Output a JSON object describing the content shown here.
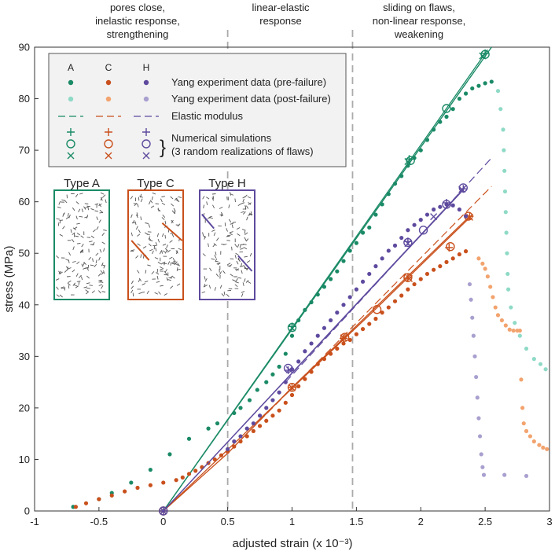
{
  "chart_data": {
    "type": "scatter",
    "xlabel": "adjusted strain (x 10⁻³)",
    "ylabel": "stress (MPa)",
    "xlim": [
      -1,
      3
    ],
    "ylim": [
      0,
      90
    ],
    "xticks": [
      -1,
      -0.5,
      0,
      0.5,
      1,
      1.5,
      2,
      2.5,
      3
    ],
    "xtick_labels": [
      "-1",
      "-0.5",
      "0",
      "0.5",
      "1",
      "1.5",
      "2",
      "2.5",
      "3"
    ],
    "yticks": [
      0,
      10,
      20,
      30,
      40,
      50,
      60,
      70,
      80,
      90
    ],
    "ytick_labels": [
      "0",
      "10",
      "20",
      "30",
      "40",
      "50",
      "60",
      "70",
      "80",
      "90"
    ],
    "regions": [
      {
        "x": 0.5,
        "label_lines": [
          "pores close,",
          "inelastic response,",
          "strengthening"
        ]
      },
      {
        "x": 1.47,
        "label_lines": [
          "linear-elastic",
          "response"
        ]
      },
      {
        "label_lines": [
          "sliding on flaws,",
          "non-linear response,",
          "weakening"
        ]
      }
    ],
    "colors": {
      "A": "#1a8a66",
      "A_post": "#8fdac6",
      "C": "#c9501c",
      "C_post": "#f2a36e",
      "H": "#5e4a9e",
      "H_post": "#a9a0cf",
      "guide": "#aaaaaa"
    },
    "legend": {
      "headers": [
        "A",
        "C",
        "H"
      ],
      "pre_failure": "Yang experiment data (pre-failure)",
      "post_failure": "Yang experiment data (post-failure)",
      "elastic": "Elastic modulus",
      "sim_line1": "Numerical simulations",
      "sim_line2": "(3 random realizations of flaws)"
    },
    "insets": [
      {
        "label": "Type A",
        "series": "A"
      },
      {
        "label": "Type C",
        "series": "C"
      },
      {
        "label": "Type H",
        "series": "H"
      }
    ],
    "series": [
      {
        "name": "A",
        "pre_failure": [
          [
            -0.7,
            0.8
          ],
          [
            -0.5,
            2.3
          ],
          [
            -0.4,
            3.5
          ],
          [
            -0.25,
            5.5
          ],
          [
            -0.1,
            8
          ],
          [
            0.05,
            11
          ],
          [
            0.2,
            14
          ],
          [
            0.35,
            16
          ],
          [
            0.42,
            17
          ],
          [
            0.55,
            19
          ],
          [
            0.6,
            20
          ],
          [
            0.67,
            21.5
          ],
          [
            0.73,
            23.5
          ],
          [
            0.8,
            25
          ],
          [
            0.85,
            26.5
          ],
          [
            0.9,
            28
          ],
          [
            0.95,
            30.5
          ],
          [
            1,
            34
          ],
          [
            1.05,
            37
          ],
          [
            1.1,
            39
          ],
          [
            1.15,
            40.5
          ],
          [
            1.2,
            42
          ],
          [
            1.25,
            43.5
          ],
          [
            1.3,
            45
          ],
          [
            1.35,
            46.5
          ],
          [
            1.4,
            48.5
          ],
          [
            1.45,
            50.5
          ],
          [
            1.5,
            52
          ],
          [
            1.55,
            54
          ],
          [
            1.6,
            55
          ],
          [
            1.65,
            57.5
          ],
          [
            1.7,
            59.5
          ],
          [
            1.75,
            61.5
          ],
          [
            1.8,
            63.5
          ],
          [
            1.85,
            65
          ],
          [
            1.9,
            67
          ],
          [
            1.95,
            68.5
          ],
          [
            2,
            70
          ],
          [
            2.05,
            72
          ],
          [
            2.1,
            74
          ],
          [
            2.15,
            75.5
          ],
          [
            2.2,
            76.5
          ],
          [
            2.25,
            78
          ],
          [
            2.3,
            80
          ],
          [
            2.35,
            81
          ],
          [
            2.4,
            82
          ],
          [
            2.45,
            82.5
          ],
          [
            2.5,
            83
          ],
          [
            2.55,
            83.3
          ]
        ],
        "post_failure": [
          [
            2.6,
            81.5
          ],
          [
            2.62,
            78
          ],
          [
            2.64,
            74
          ],
          [
            2.645,
            70
          ],
          [
            2.65,
            66
          ],
          [
            2.655,
            62
          ],
          [
            2.66,
            58
          ],
          [
            2.665,
            54
          ],
          [
            2.67,
            50
          ],
          [
            2.675,
            46
          ],
          [
            2.68,
            43
          ],
          [
            2.7,
            39.5
          ],
          [
            2.73,
            36.5
          ],
          [
            2.77,
            34
          ],
          [
            2.82,
            31.5
          ],
          [
            2.88,
            29.5
          ],
          [
            2.93,
            28.5
          ],
          [
            2.97,
            27.5
          ]
        ],
        "elastic_line": [
          [
            0,
            0
          ],
          [
            2.55,
            90
          ]
        ],
        "simulations": {
          "plus": [
            [
              0,
              0
            ],
            [
              1,
              35.8
            ],
            [
              1.91,
              68.3
            ],
            [
              2.5,
              88.8
            ]
          ],
          "circle": [
            [
              0,
              0
            ],
            [
              1,
              35.6
            ],
            [
              1.92,
              68
            ],
            [
              2.2,
              78.1
            ],
            [
              2.5,
              88.6
            ]
          ],
          "cross": [
            [
              0,
              0
            ],
            [
              1,
              35.5
            ],
            [
              1.9,
              67.8
            ],
            [
              2.48,
              88.3
            ]
          ]
        },
        "sim_lines": [
          [
            [
              0,
              0
            ],
            [
              2.55,
              90
            ]
          ],
          [
            [
              0,
              0
            ],
            [
              2.52,
              89.5
            ]
          ]
        ]
      },
      {
        "name": "C",
        "pre_failure": [
          [
            -0.68,
            0.8
          ],
          [
            -0.6,
            1.5
          ],
          [
            -0.5,
            2.3
          ],
          [
            -0.4,
            3
          ],
          [
            -0.3,
            3.8
          ],
          [
            -0.2,
            4.5
          ],
          [
            -0.1,
            5
          ],
          [
            0,
            5.5
          ],
          [
            0.1,
            6
          ],
          [
            0.15,
            6.5
          ],
          [
            0.2,
            7.2
          ],
          [
            0.25,
            7.8
          ],
          [
            0.3,
            8.5
          ],
          [
            0.35,
            9.3
          ],
          [
            0.4,
            10
          ],
          [
            0.45,
            10.8
          ],
          [
            0.5,
            11.5
          ],
          [
            0.55,
            12.5
          ],
          [
            0.6,
            13.5
          ],
          [
            0.65,
            14.5
          ],
          [
            0.7,
            15.5
          ],
          [
            0.75,
            16.5
          ],
          [
            0.8,
            17.5
          ],
          [
            0.85,
            18.5
          ],
          [
            0.9,
            19.5
          ],
          [
            0.95,
            21
          ],
          [
            1,
            22.5
          ],
          [
            1.05,
            24.2
          ],
          [
            1.1,
            25.6
          ],
          [
            1.15,
            27
          ],
          [
            1.2,
            28.5
          ],
          [
            1.25,
            29.5
          ],
          [
            1.3,
            30.5
          ],
          [
            1.35,
            31.5
          ],
          [
            1.4,
            32.5
          ],
          [
            1.45,
            33.2
          ],
          [
            1.5,
            34.3
          ],
          [
            1.55,
            35.3
          ],
          [
            1.6,
            36.3
          ],
          [
            1.65,
            37.3
          ],
          [
            1.7,
            38.5
          ],
          [
            1.75,
            39.5
          ],
          [
            1.8,
            40.7
          ],
          [
            1.85,
            41.8
          ],
          [
            1.9,
            43
          ],
          [
            1.95,
            44
          ],
          [
            2,
            45
          ],
          [
            2.05,
            46
          ],
          [
            2.1,
            46.8
          ],
          [
            2.15,
            47.5
          ],
          [
            2.2,
            48.3
          ],
          [
            2.25,
            49
          ],
          [
            2.3,
            49.8
          ],
          [
            2.35,
            50.4
          ]
        ],
        "post_failure": [
          [
            2.45,
            49
          ],
          [
            2.48,
            48
          ],
          [
            2.5,
            47
          ],
          [
            2.52,
            45.5
          ],
          [
            2.54,
            43.5
          ],
          [
            2.56,
            41.5
          ],
          [
            2.58,
            39.5
          ],
          [
            2.6,
            38
          ],
          [
            2.63,
            37
          ],
          [
            2.66,
            36
          ],
          [
            2.69,
            35.2
          ],
          [
            2.72,
            35
          ],
          [
            2.75,
            35
          ],
          [
            2.77,
            35
          ],
          [
            2.78,
            25.5
          ],
          [
            2.79,
            20
          ],
          [
            2.8,
            17
          ],
          [
            2.82,
            15.5
          ],
          [
            2.85,
            14.5
          ],
          [
            2.88,
            13.5
          ],
          [
            2.92,
            12.8
          ],
          [
            2.95,
            12.3
          ],
          [
            2.98,
            12
          ]
        ],
        "elastic_line": [
          [
            0.55,
            12.5
          ],
          [
            2.55,
            63
          ]
        ],
        "simulations": {
          "plus": [
            [
              0,
              0
            ],
            [
              1,
              24
            ],
            [
              1.4,
              33.5
            ],
            [
              1.9,
              45.2
            ],
            [
              2.22,
              51.1
            ],
            [
              2.38,
              57.2
            ]
          ],
          "circle": [
            [
              0,
              0
            ],
            [
              1,
              24
            ],
            [
              1.41,
              33.7
            ],
            [
              1.66,
              39.1
            ],
            [
              1.9,
              45.3
            ],
            [
              2.23,
              51.3
            ],
            [
              2.37,
              57.2
            ]
          ],
          "cross": [
            [
              0,
              0
            ],
            [
              1,
              23.9
            ],
            [
              1.4,
              33.6
            ],
            [
              1.91,
              45.1
            ],
            [
              2.38,
              57
            ]
          ]
        },
        "sim_lines": [
          [
            [
              0,
              0
            ],
            [
              0.5,
              11.2
            ],
            [
              1,
              24
            ],
            [
              1.4,
              33.5
            ],
            [
              2.38,
              57.2
            ]
          ],
          [
            [
              0,
              0
            ],
            [
              1,
              23.8
            ],
            [
              1.6,
              38
            ],
            [
              2.4,
              57.4
            ]
          ]
        ]
      },
      {
        "name": "H",
        "pre_failure": [
          [
            0.5,
            12
          ],
          [
            0.55,
            13.5
          ],
          [
            0.6,
            14.5
          ],
          [
            0.65,
            16
          ],
          [
            0.7,
            17
          ],
          [
            0.75,
            18.5
          ],
          [
            0.8,
            20
          ],
          [
            0.85,
            21.5
          ],
          [
            0.9,
            23
          ],
          [
            0.95,
            25
          ],
          [
            1,
            27.5
          ],
          [
            1.05,
            29
          ],
          [
            1.1,
            31
          ],
          [
            1.15,
            32.5
          ],
          [
            1.2,
            34
          ],
          [
            1.25,
            35.5
          ],
          [
            1.3,
            37
          ],
          [
            1.35,
            38.5
          ],
          [
            1.4,
            40
          ],
          [
            1.45,
            41.5
          ],
          [
            1.5,
            43
          ],
          [
            1.55,
            44.5
          ],
          [
            1.6,
            46
          ],
          [
            1.65,
            47.5
          ],
          [
            1.7,
            49
          ],
          [
            1.75,
            50.5
          ],
          [
            1.8,
            51.5
          ],
          [
            1.85,
            53
          ],
          [
            1.9,
            54.5
          ],
          [
            1.95,
            55.5
          ],
          [
            2,
            56.5
          ],
          [
            2.05,
            57.5
          ],
          [
            2.1,
            58.5
          ],
          [
            2.15,
            59
          ],
          [
            2.2,
            59.5
          ],
          [
            2.25,
            59.3
          ],
          [
            2.3,
            58.5
          ],
          [
            2.35,
            57.2
          ]
        ],
        "post_failure": [
          [
            2.38,
            44
          ],
          [
            2.39,
            41
          ],
          [
            2.4,
            37.5
          ],
          [
            2.41,
            34
          ],
          [
            2.42,
            30
          ],
          [
            2.43,
            26
          ],
          [
            2.44,
            22
          ],
          [
            2.45,
            18
          ],
          [
            2.46,
            14.5
          ],
          [
            2.47,
            11
          ],
          [
            2.48,
            8.5
          ],
          [
            2.49,
            7
          ],
          [
            2.65,
            7
          ],
          [
            2.82,
            6.8
          ]
        ],
        "elastic_line": [
          [
            0.95,
            25
          ],
          [
            2.55,
            68.5
          ]
        ],
        "simulations": {
          "plus": [
            [
              0,
              0
            ],
            [
              0.97,
              27.3
            ],
            [
              1.9,
              52.3
            ],
            [
              2.2,
              59.8
            ],
            [
              2.33,
              62.5
            ]
          ],
          "circle": [
            [
              0,
              0
            ],
            [
              0.97,
              27.7
            ],
            [
              1.9,
              52.1
            ],
            [
              2.02,
              54.5
            ],
            [
              2.2,
              59.5
            ],
            [
              2.33,
              62.7
            ]
          ],
          "cross": [
            [
              0,
              0
            ],
            [
              0.98,
              27.4
            ],
            [
              1.9,
              51.9
            ],
            [
              2.1,
              57.1
            ],
            [
              2.32,
              62.4
            ]
          ]
        },
        "sim_lines": [
          [
            [
              0,
              0
            ],
            [
              2.34,
              62.7
            ]
          ],
          [
            [
              0,
              0
            ],
            [
              2.33,
              62.3
            ]
          ]
        ]
      }
    ]
  }
}
